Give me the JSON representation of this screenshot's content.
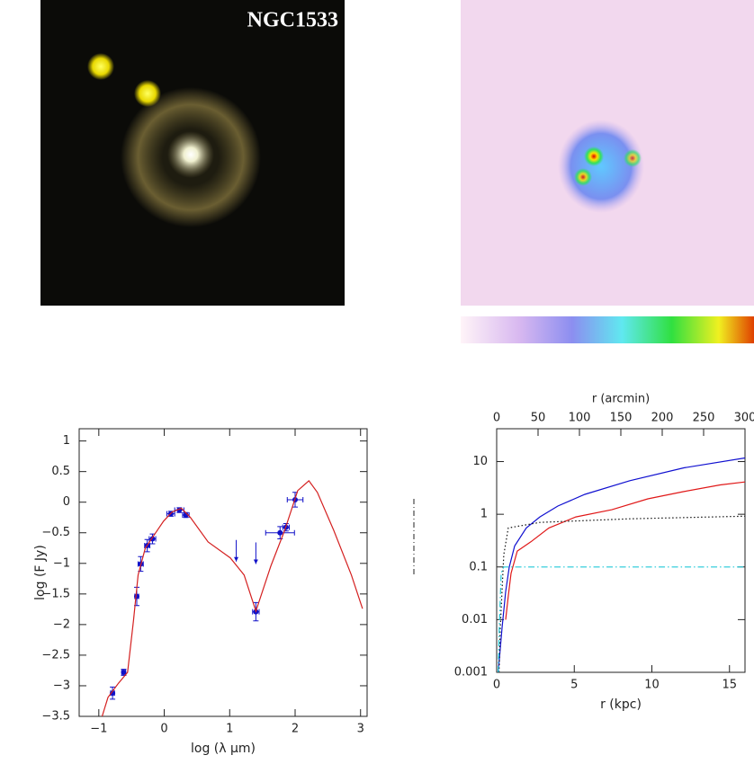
{
  "image_label": "NGC1533",
  "chart_data": [
    {
      "type": "scatter",
      "xlabel": "log    (λ μm)",
      "ylabel": "log (F Jy)",
      "xlim": [
        -1.3,
        3.1
      ],
      "ylim": [
        -3.5,
        1.2
      ],
      "xticks": [
        {
          "value": -1,
          "label": "−1"
        },
        0,
        1,
        2,
        3
      ],
      "yticks": [
        {
          "value": -3.5,
          "label": "−3.5"
        },
        {
          "value": -3,
          "label": "−3"
        },
        {
          "value": -2.5,
          "label": "−2.5"
        },
        {
          "value": -2,
          "label": "−2"
        },
        {
          "value": -1.5,
          "label": "−1.5"
        },
        {
          "value": -1,
          "label": "−1"
        },
        {
          "value": -0.5,
          "label": "−0.5"
        },
        0,
        0.5,
        1
      ],
      "series": [
        {
          "style": "points",
          "color": "#1010c8",
          "x": [
            -0.79,
            -0.62,
            -0.42,
            -0.36,
            -0.26,
            -0.18,
            0.1,
            0.23,
            0.33,
            1.4,
            1.77,
            1.86,
            2.0
          ],
          "values": [
            -3.12,
            -2.78,
            -1.54,
            -1.01,
            -0.71,
            -0.6,
            -0.19,
            -0.13,
            -0.21,
            -1.79,
            -0.5,
            -0.41,
            0.04
          ],
          "xerr": [
            0.03,
            0.03,
            0.03,
            0.04,
            0.04,
            0.05,
            0.06,
            0.07,
            0.05,
            0.05,
            0.22,
            0.05,
            0.12
          ],
          "yerr": [
            0.1,
            0.05,
            0.15,
            0.12,
            0.1,
            0.08,
            0.04,
            0.04,
            0.04,
            0.15,
            0.1,
            0.06,
            0.12
          ]
        },
        {
          "style": "line",
          "color": "#d42020",
          "x": [
            -0.95,
            -0.86,
            -0.7,
            -0.56,
            -0.47,
            -0.4,
            -0.29,
            -0.15,
            -0.01,
            0.12,
            0.26,
            0.4,
            0.67,
            1.01,
            1.22,
            1.4,
            1.63,
            1.84,
            2.04,
            2.21,
            2.34,
            2.59,
            2.86,
            3.03
          ],
          "values": [
            -3.5,
            -3.19,
            -2.96,
            -2.78,
            -1.93,
            -1.19,
            -0.75,
            -0.53,
            -0.31,
            -0.16,
            -0.1,
            -0.25,
            -0.65,
            -0.91,
            -1.19,
            -1.78,
            -1.04,
            -0.46,
            0.19,
            0.35,
            0.16,
            -0.46,
            -1.19,
            -1.74
          ]
        },
        {
          "style": "upper-limit",
          "color": "#1010c8",
          "x": [
            1.1,
            1.4
          ],
          "values": [
            -0.97,
            -1.01
          ]
        }
      ]
    },
    {
      "type": "line",
      "log_y": true,
      "xlabel": "r (kpc)",
      "x2label": "r (arcmin)",
      "xlim": [
        0,
        16
      ],
      "ylim": [
        0.001,
        42
      ],
      "x2lim": [
        0,
        300
      ],
      "xticks": [
        0,
        5,
        10,
        15
      ],
      "x2ticks": [
        0,
        50,
        100,
        150,
        200,
        250,
        300
      ],
      "yticks": [
        0.001,
        0.01,
        0.1,
        1,
        10
      ],
      "series": [
        {
          "color": "#1010d0",
          "dash": "solid",
          "x": [
            0.1,
            0.35,
            0.58,
            0.81,
            1.16,
            1.91,
            2.78,
            3.94,
            5.68,
            8.58,
            12.06,
            16
          ],
          "values": [
            0.001,
            0.007,
            0.034,
            0.1,
            0.25,
            0.55,
            0.89,
            1.43,
            2.39,
            4.34,
            7.6,
            11.7
          ]
        },
        {
          "color": "#e01818",
          "dash": "solid",
          "x": [
            0.58,
            0.75,
            0.93,
            1.33,
            2.2,
            3.36,
            5.1,
            7.42,
            9.74,
            12.06,
            14.4,
            16
          ],
          "values": [
            0.01,
            0.028,
            0.076,
            0.2,
            0.3,
            0.55,
            0.89,
            1.22,
            1.96,
            2.7,
            3.6,
            4.1
          ]
        },
        {
          "color": "#111111",
          "dash": "dotted",
          "x": [
            0.15,
            0.23,
            0.46,
            0.75,
            2.78,
            8.58,
            16
          ],
          "values": [
            0.001,
            0.007,
            0.17,
            0.55,
            0.7,
            0.82,
            0.92
          ]
        },
        {
          "color": "#20c8d8",
          "dash": "dashdot",
          "x": [
            0.1,
            0.17,
            0.29,
            0.46,
            16
          ],
          "values": [
            0.001,
            0.007,
            0.076,
            0.1,
            0.1
          ]
        }
      ]
    }
  ]
}
